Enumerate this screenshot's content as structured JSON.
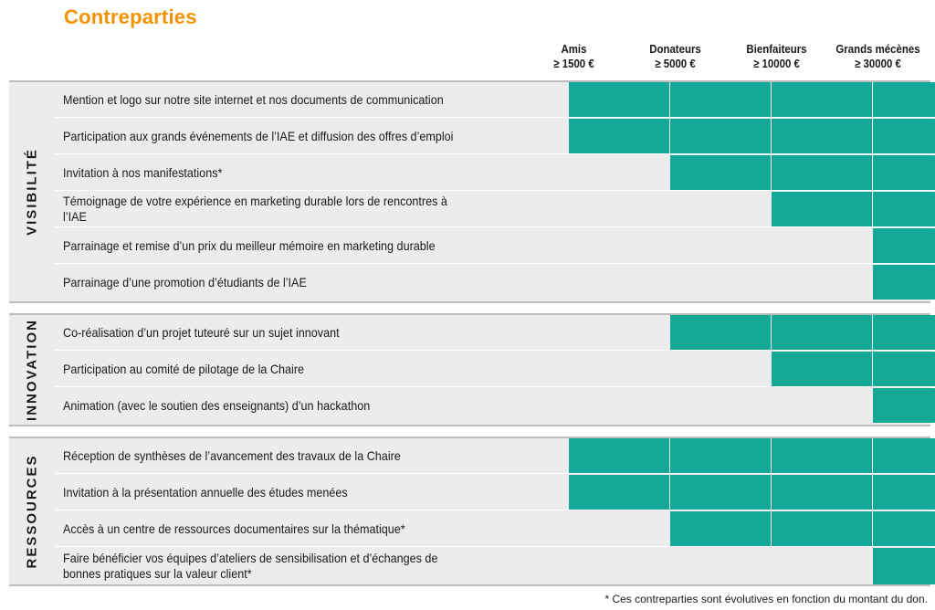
{
  "title": "Contreparties",
  "columns": [
    {
      "name": "Amis",
      "amount": "≥ 1500 €"
    },
    {
      "name": "Donateurs",
      "amount": "≥ 5000 €"
    },
    {
      "name": "Bienfaiteurs",
      "amount": "≥ 10000 €"
    },
    {
      "name": "Grands mécènes",
      "amount": "≥ 30000 €"
    }
  ],
  "sections": [
    {
      "label": "VISIBILITÉ",
      "rows": [
        {
          "text": "Mention et logo sur notre site internet et nos documents de communication",
          "tiers": [
            true,
            true,
            true,
            true
          ]
        },
        {
          "text": "Participation aux grands événements de l’IAE et diffusion des offres d’emploi",
          "tiers": [
            true,
            true,
            true,
            true
          ]
        },
        {
          "text": "Invitation à nos manifestations*",
          "tiers": [
            false,
            true,
            true,
            true
          ]
        },
        {
          "text": "Témoignage de votre expérience en marketing durable lors de rencontres à l’IAE",
          "tiers": [
            false,
            false,
            true,
            true
          ]
        },
        {
          "text": "Parrainage et remise d’un prix du meilleur mémoire en marketing durable",
          "tiers": [
            false,
            false,
            false,
            true
          ]
        },
        {
          "text": "Parrainage d’une promotion d’étudiants de l’IAE",
          "tiers": [
            false,
            false,
            false,
            true
          ]
        }
      ]
    },
    {
      "label": "INNOVATION",
      "rows": [
        {
          "text": "Co-réalisation d’un projet tuteuré sur un sujet innovant",
          "tiers": [
            false,
            true,
            true,
            true
          ]
        },
        {
          "text": "Participation au comité de pilotage de la Chaire",
          "tiers": [
            false,
            false,
            true,
            true
          ]
        },
        {
          "text": "Animation (avec le soutien des enseignants) d’un hackathon",
          "tiers": [
            false,
            false,
            false,
            true
          ]
        }
      ]
    },
    {
      "label": "RESSOURCES",
      "rows": [
        {
          "text": "Réception de synthèses de l’avancement des travaux de la Chaire",
          "tiers": [
            true,
            true,
            true,
            true
          ]
        },
        {
          "text": "Invitation à la présentation annuelle des études menées",
          "tiers": [
            true,
            true,
            true,
            true
          ]
        },
        {
          "text": "Accès à un centre de ressources documentaires sur la thématique*",
          "tiers": [
            false,
            true,
            true,
            true
          ]
        },
        {
          "text": "Faire bénéficier vos équipes d’ateliers de sensibilisation et d’échanges de bonnes pratiques sur la valeur client*",
          "tiers": [
            false,
            false,
            false,
            true
          ]
        }
      ]
    }
  ],
  "footnote": "* Ces contreparties sont évolutives en fonction du montant du don.",
  "colors": {
    "title": "#f39200",
    "included": "#14a896",
    "section_bg": "#ececec"
  }
}
